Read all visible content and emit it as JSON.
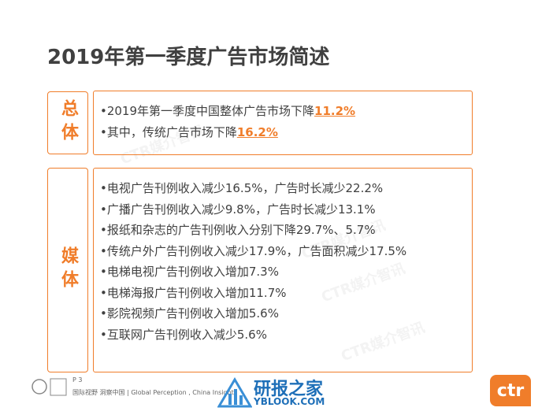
{
  "title": "2019年第一季度广告市场简述",
  "sections": [
    {
      "label": "总体",
      "lines": [
        {
          "text": "•2019年第一季度中国整体广告市场下降",
          "highlight": "11.2%"
        },
        {
          "text": "•其中，传统广告市场下降",
          "highlight": "16.2%"
        }
      ]
    },
    {
      "label": "媒体",
      "lines": [
        {
          "text": "•电视广告刊例收入减少16.5%，广告时长减少22.2%"
        },
        {
          "text": "•广播广告刊例收入减少9.8%，广告时长减少13.1%"
        },
        {
          "text": "•报纸和杂志的广告刊例收入分别下降29.7%、5.7%"
        },
        {
          "text": "•传统户外广告刊例收入减少17.9%，广告面积减少17.5%"
        },
        {
          "text": "•电梯电视广告刊例收入增加7.3%"
        },
        {
          "text": "•电梯海报广告刊例收入增加11.7%"
        },
        {
          "text": "•影院视频广告刊例收入增加5.6%"
        },
        {
          "text": "•互联网广告刊例收入减少5.6%"
        }
      ]
    }
  ],
  "watermark": "CTR媒介智讯",
  "footer": {
    "page": "P 3",
    "tagline": "国际视野  洞察中国 | Global Perception , China Insight",
    "logo": "ctr",
    "site_name": "研报之家",
    "site_url": "YBLOOK.COM"
  }
}
